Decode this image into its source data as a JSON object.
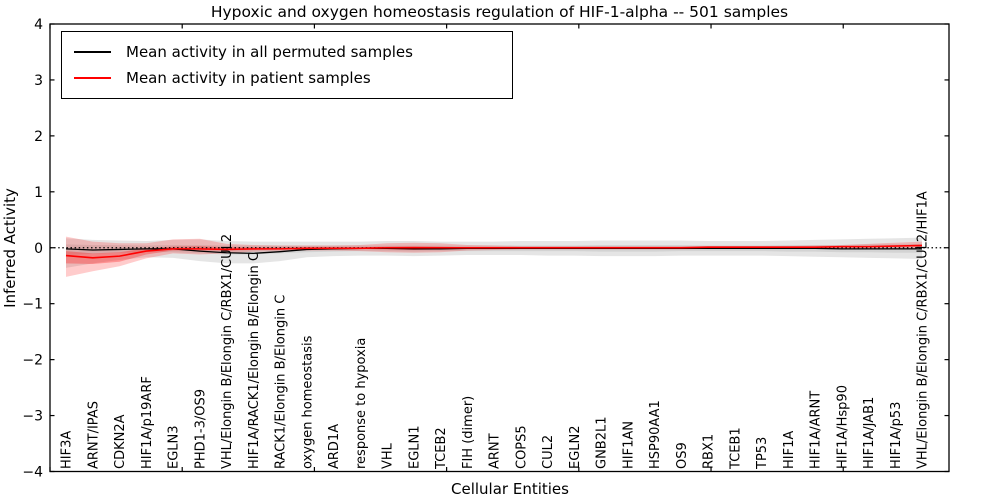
{
  "figure": {
    "title": "Hypoxic and oxygen homeostasis regulation of HIF-1-alpha -- 501 samples",
    "xlabel": "Cellular Entities",
    "ylabel": "Inferred Activity"
  },
  "legend": {
    "position": "upper left",
    "entries": [
      {
        "label": "Mean activity in all permuted samples",
        "color": "#000000"
      },
      {
        "label": "Mean activity in patient samples",
        "color": "#ff0000"
      }
    ]
  },
  "chart_data": {
    "type": "line",
    "title": "Hypoxic and oxygen homeostasis regulation of HIF-1-alpha -- 501 samples",
    "xlabel": "Cellular Entities",
    "ylabel": "Inferred Activity",
    "ylim": [
      -4,
      4
    ],
    "yticks": [
      -4,
      -3,
      -2,
      -1,
      0,
      1,
      2,
      3,
      4
    ],
    "xlim": [
      0,
      34
    ],
    "xticks": [
      0,
      5,
      10,
      15,
      20,
      25,
      30
    ],
    "grid": false,
    "legend_position": "upper left",
    "zero_line": {
      "y": 0,
      "style": "dotted",
      "color": "#000000"
    },
    "category_label_rotation": 90,
    "categories": [
      "HIF3A",
      "ARNT/IPAS",
      "CDKN2A",
      "HIF1A/p19ARF",
      "EGLN3",
      "PHD1-3/OS9",
      "VHL/Elongin B/Elongin C/RBX1/CUL2",
      "HIF1A/RACK1/Elongin B/Elongin C",
      "RACK1/Elongin B/Elongin C",
      "oxygen homeostasis",
      "ARD1A",
      "response to hypoxia",
      "VHL",
      "EGLN1",
      "TCEB2",
      "FIH (dimer)",
      "ARNT",
      "COPS5",
      "CUL2",
      "EGLN2",
      "GNB2L1",
      "HIF1AN",
      "HSP90AA1",
      "OS9",
      "RBX1",
      "TCEB1",
      "TP53",
      "HIF1A",
      "HIF1A/ARNT",
      "HIF1A/Hsp90",
      "HIF1A/JAB1",
      "HIF1A/p53",
      "VHL/Elongin B/Elongin C/RBX1/CUL2/HIF1A"
    ],
    "series": [
      {
        "name": "Mean activity in all permuted samples",
        "color": "#000000",
        "width": 1.3,
        "values": [
          -0.02,
          -0.04,
          -0.03,
          -0.02,
          -0.02,
          -0.06,
          -0.09,
          -0.1,
          -0.07,
          -0.03,
          -0.02,
          -0.01,
          -0.01,
          -0.02,
          -0.02,
          -0.01,
          -0.01,
          -0.01,
          -0.01,
          -0.01,
          -0.01,
          -0.01,
          -0.01,
          -0.01,
          -0.01,
          -0.01,
          -0.01,
          -0.01,
          -0.01,
          -0.02,
          -0.02,
          -0.02,
          -0.02
        ]
      },
      {
        "name": "Mean activity in patient samples",
        "color": "#ff0000",
        "width": 1.6,
        "values": [
          -0.14,
          -0.18,
          -0.15,
          -0.06,
          -0.02,
          -0.02,
          -0.03,
          -0.02,
          -0.02,
          -0.01,
          -0.01,
          -0.01,
          0.0,
          0.0,
          0.0,
          0.0,
          0.0,
          0.0,
          0.0,
          0.0,
          0.0,
          0.0,
          0.0,
          0.0,
          0.01,
          0.01,
          0.01,
          0.01,
          0.01,
          0.02,
          0.02,
          0.03,
          0.04
        ]
      }
    ],
    "bands": [
      {
        "name": "permuted-outer",
        "color": "rgba(0,0,0,0.10)",
        "upper": [
          0.17,
          0.14,
          0.13,
          0.12,
          0.14,
          0.15,
          0.12,
          0.11,
          0.11,
          0.11,
          0.11,
          0.11,
          0.12,
          0.12,
          0.11,
          0.11,
          0.11,
          0.12,
          0.12,
          0.12,
          0.13,
          0.13,
          0.13,
          0.13,
          0.12,
          0.12,
          0.12,
          0.13,
          0.14,
          0.15,
          0.16,
          0.17,
          0.18
        ],
        "lower": [
          -0.36,
          -0.28,
          -0.22,
          -0.17,
          -0.18,
          -0.24,
          -0.28,
          -0.28,
          -0.24,
          -0.17,
          -0.15,
          -0.14,
          -0.14,
          -0.15,
          -0.14,
          -0.13,
          -0.13,
          -0.13,
          -0.14,
          -0.14,
          -0.15,
          -0.15,
          -0.15,
          -0.14,
          -0.14,
          -0.14,
          -0.14,
          -0.15,
          -0.16,
          -0.17,
          -0.18,
          -0.19,
          -0.2
        ]
      },
      {
        "name": "permuted-inner",
        "color": "rgba(0,0,0,0.08)",
        "upper": [
          0.06,
          0.05,
          0.05,
          0.04,
          0.05,
          0.05,
          0.04,
          0.04,
          0.04,
          0.04,
          0.04,
          0.04,
          0.04,
          0.04,
          0.04,
          0.04,
          0.04,
          0.04,
          0.04,
          0.04,
          0.05,
          0.05,
          0.05,
          0.05,
          0.04,
          0.04,
          0.04,
          0.05,
          0.05,
          0.05,
          0.06,
          0.06,
          0.07
        ],
        "lower": [
          -0.13,
          -0.11,
          -0.09,
          -0.08,
          -0.08,
          -0.1,
          -0.12,
          -0.12,
          -0.1,
          -0.08,
          -0.07,
          -0.06,
          -0.06,
          -0.07,
          -0.06,
          -0.06,
          -0.06,
          -0.06,
          -0.06,
          -0.06,
          -0.07,
          -0.07,
          -0.07,
          -0.06,
          -0.06,
          -0.06,
          -0.06,
          -0.07,
          -0.07,
          -0.08,
          -0.08,
          -0.09,
          -0.09
        ]
      },
      {
        "name": "patient-outer",
        "color": "rgba(255,0,0,0.20)",
        "upper": [
          0.2,
          0.11,
          0.08,
          0.08,
          0.15,
          0.16,
          0.07,
          0.05,
          0.04,
          0.04,
          0.04,
          0.05,
          0.08,
          0.09,
          0.08,
          0.05,
          0.04,
          0.03,
          0.03,
          0.03,
          0.03,
          0.03,
          0.03,
          0.03,
          0.03,
          0.03,
          0.03,
          0.03,
          0.04,
          0.05,
          0.07,
          0.09,
          0.11
        ],
        "lower": [
          -0.52,
          -0.42,
          -0.33,
          -0.19,
          -0.1,
          -0.12,
          -0.1,
          -0.07,
          -0.06,
          -0.05,
          -0.05,
          -0.06,
          -0.08,
          -0.09,
          -0.08,
          -0.05,
          -0.04,
          -0.03,
          -0.03,
          -0.03,
          -0.03,
          -0.03,
          -0.03,
          -0.03,
          -0.02,
          -0.02,
          -0.02,
          -0.02,
          -0.02,
          -0.02,
          -0.02,
          -0.03,
          -0.03
        ]
      },
      {
        "name": "patient-inner",
        "color": "rgba(255,0,0,0.28)",
        "upper": [
          -0.06,
          -0.1,
          -0.08,
          -0.01,
          0.02,
          0.03,
          0.01,
          0.01,
          0.01,
          0.01,
          0.01,
          0.01,
          0.02,
          0.03,
          0.02,
          0.01,
          0.01,
          0.01,
          0.01,
          0.01,
          0.01,
          0.01,
          0.01,
          0.01,
          0.01,
          0.01,
          0.02,
          0.02,
          0.02,
          0.03,
          0.03,
          0.04,
          0.06
        ],
        "lower": [
          -0.28,
          -0.29,
          -0.25,
          -0.12,
          -0.05,
          -0.05,
          -0.05,
          -0.04,
          -0.03,
          -0.03,
          -0.02,
          -0.02,
          -0.03,
          -0.04,
          -0.03,
          -0.02,
          -0.02,
          -0.01,
          -0.01,
          -0.01,
          -0.01,
          -0.01,
          -0.01,
          -0.01,
          -0.01,
          -0.01,
          0.0,
          0.0,
          0.0,
          0.01,
          0.01,
          0.02,
          0.02
        ]
      }
    ]
  }
}
